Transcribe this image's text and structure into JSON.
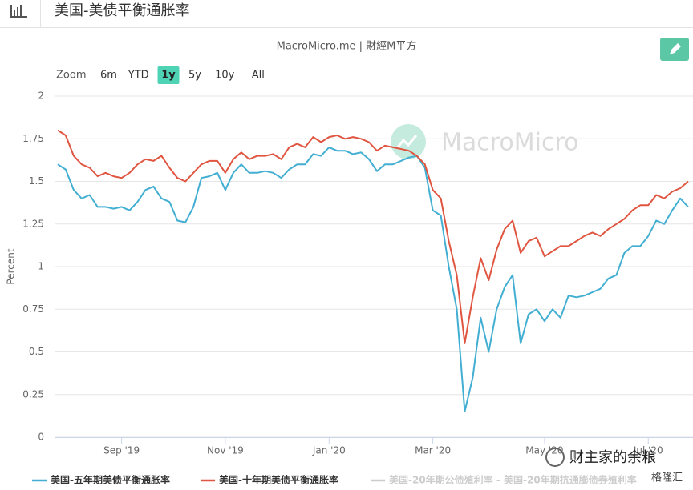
{
  "header": {
    "title": "美国-美债平衡通胀率"
  },
  "source": "MacroMicro.me | 財經M平方",
  "zoom": {
    "label": "Zoom",
    "options": [
      "6m",
      "YTD",
      "1y",
      "5y",
      "10y",
      "All"
    ],
    "selected_index": 2
  },
  "watermark": "MacroMicro",
  "overlay": {
    "account": "财主家的余粮",
    "brand": "格隆汇"
  },
  "chart_data": {
    "type": "line",
    "y_label": "Percent",
    "ylim": [
      0,
      2
    ],
    "yticks": [
      0,
      0.25,
      0.5,
      0.75,
      1,
      1.25,
      1.5,
      1.75,
      2
    ],
    "grid": true,
    "categories": [
      null,
      null,
      null,
      null,
      null,
      null,
      null,
      null,
      "Sep '19",
      null,
      null,
      null,
      null,
      null,
      null,
      null,
      null,
      null,
      null,
      null,
      null,
      "Nov '19",
      null,
      null,
      null,
      null,
      null,
      null,
      null,
      null,
      null,
      null,
      null,
      null,
      "Jan '20",
      null,
      null,
      null,
      null,
      null,
      null,
      null,
      null,
      null,
      null,
      null,
      null,
      "Mar '20",
      null,
      null,
      null,
      null,
      null,
      null,
      null,
      null,
      null,
      null,
      null,
      null,
      null,
      "May '20",
      null,
      null,
      null,
      null,
      null,
      null,
      null,
      null,
      null,
      null,
      null,
      null,
      "Jul '20",
      null,
      null,
      null,
      null,
      null
    ],
    "series": [
      {
        "name": "美国-五年期美债平衡通胀率",
        "color": "#41aed2",
        "visible": true,
        "values": [
          1.6,
          1.57,
          1.45,
          1.4,
          1.42,
          1.35,
          1.35,
          1.34,
          1.35,
          1.33,
          1.38,
          1.45,
          1.47,
          1.4,
          1.38,
          1.27,
          1.26,
          1.35,
          1.52,
          1.53,
          1.55,
          1.45,
          1.55,
          1.6,
          1.55,
          1.55,
          1.56,
          1.55,
          1.52,
          1.57,
          1.6,
          1.6,
          1.66,
          1.65,
          1.7,
          1.68,
          1.68,
          1.66,
          1.67,
          1.63,
          1.56,
          1.6,
          1.6,
          1.62,
          1.64,
          1.65,
          1.58,
          1.33,
          1.3,
          1.0,
          0.75,
          0.15,
          0.35,
          0.7,
          0.5,
          0.75,
          0.88,
          0.95,
          0.55,
          0.72,
          0.75,
          0.68,
          0.75,
          0.7,
          0.83,
          0.82,
          0.83,
          0.85,
          0.87,
          0.93,
          0.95,
          1.08,
          1.12,
          1.12,
          1.18,
          1.27,
          1.25,
          1.33,
          1.4,
          1.35
        ]
      },
      {
        "name": "美国-十年期美债平衡通胀率",
        "color": "#e05540",
        "visible": true,
        "values": [
          1.8,
          1.77,
          1.65,
          1.6,
          1.58,
          1.53,
          1.55,
          1.53,
          1.52,
          1.55,
          1.6,
          1.63,
          1.62,
          1.65,
          1.58,
          1.52,
          1.5,
          1.55,
          1.6,
          1.62,
          1.62,
          1.55,
          1.63,
          1.67,
          1.63,
          1.65,
          1.65,
          1.66,
          1.63,
          1.7,
          1.72,
          1.7,
          1.76,
          1.73,
          1.76,
          1.77,
          1.75,
          1.76,
          1.75,
          1.73,
          1.68,
          1.71,
          1.7,
          1.69,
          1.68,
          1.65,
          1.6,
          1.45,
          1.4,
          1.15,
          0.95,
          0.55,
          0.82,
          1.05,
          0.92,
          1.1,
          1.22,
          1.27,
          1.08,
          1.15,
          1.17,
          1.06,
          1.09,
          1.12,
          1.12,
          1.15,
          1.18,
          1.2,
          1.18,
          1.22,
          1.25,
          1.28,
          1.33,
          1.36,
          1.36,
          1.42,
          1.4,
          1.44,
          1.46,
          1.5
        ]
      },
      {
        "name": "美国-20年期公债殖利率 - 美国-20年期抗通膨债券殖利率",
        "color": "#cccccc",
        "visible": false
      }
    ]
  }
}
